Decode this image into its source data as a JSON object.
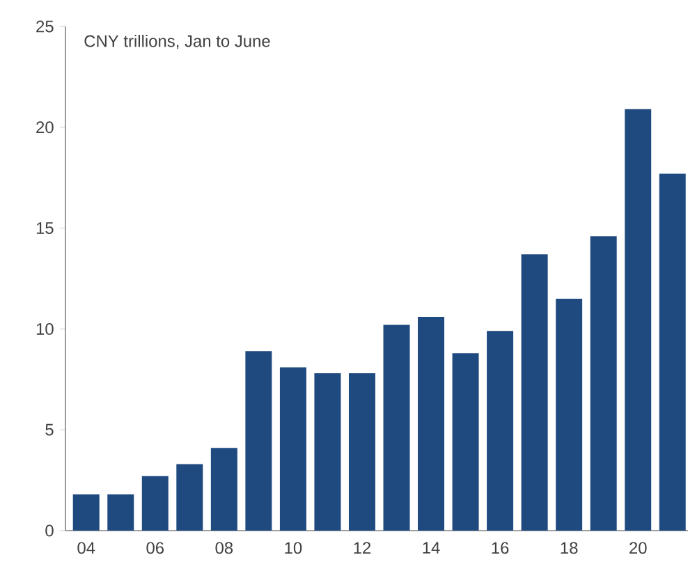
{
  "chart_data": {
    "type": "bar",
    "ylabel": "CNY trillions, Jan to June",
    "categories": [
      "04",
      null,
      "06",
      null,
      "08",
      null,
      "10",
      null,
      "12",
      null,
      "14",
      null,
      "16",
      null,
      "18",
      null,
      "20",
      null
    ],
    "values": [
      1.8,
      1.8,
      2.7,
      3.3,
      4.1,
      8.9,
      8.1,
      7.8,
      7.8,
      10.2,
      10.6,
      8.8,
      9.9,
      13.7,
      11.5,
      14.6,
      20.9,
      17.7
    ],
    "color": "#1f4a80",
    "ylim": [
      0,
      25
    ],
    "yticks": [
      0,
      5,
      10,
      15,
      20,
      25
    ]
  }
}
